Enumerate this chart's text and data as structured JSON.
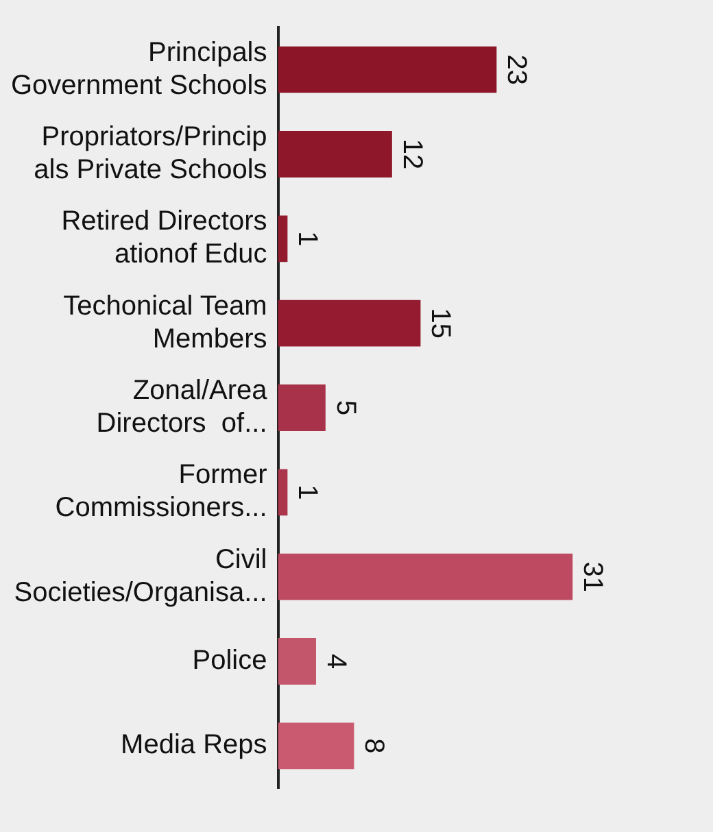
{
  "chart_data": {
    "type": "bar",
    "orientation": "horizontal",
    "categories": [
      "Principals\nGovernment Schools",
      "Propriators/Princip\nals Private Schools",
      "Retired Directors\nationof Educ",
      "Techonical Team\nMembers",
      "Zonal/Area\nDirectors  of...",
      "Former\nCommissioners...",
      "Civil\nSocieties/Organisa...",
      "Police",
      "Media Reps"
    ],
    "values": [
      23,
      12,
      1,
      15,
      5,
      1,
      31,
      4,
      8
    ],
    "colors": [
      "#8c1527",
      "#8e1729",
      "#921a2d",
      "#951c30",
      "#a83249",
      "#ab364c",
      "#bd4a61",
      "#c4566b",
      "#c95a70"
    ],
    "data_labels": true
  }
}
